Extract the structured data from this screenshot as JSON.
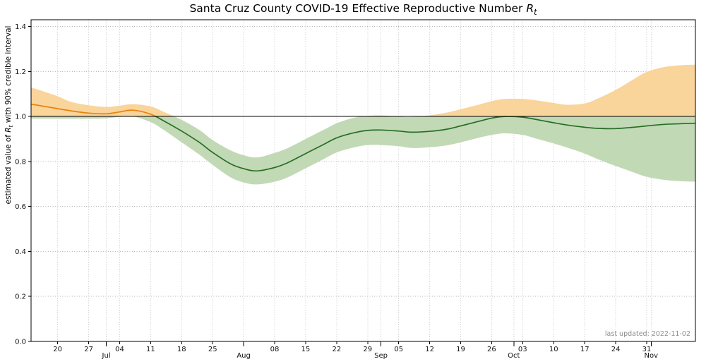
{
  "page": {
    "title_prefix": "Santa Cruz County COVID-19 Effective Reproductive Number ",
    "rt_symbol": "R",
    "rt_sub": "t",
    "ylabel_prefix": "estimated value of ",
    "ylabel_suffix": " with 90% credible interval",
    "note": "last updated: 2022-11-02"
  },
  "chart_data": {
    "type": "line",
    "title": "Santa Cruz County COVID-19 Effective Reproductive Number Rt",
    "ylabel": "estimated value of Rt with 90% credible interval",
    "note": "last updated: 2022-11-02",
    "x_unit": "days since 2022-06-14",
    "xlim_days": [
      0,
      150
    ],
    "ylim": [
      0,
      1.43
    ],
    "reference_line": 1.0,
    "grid": true,
    "legend": "none",
    "yticks": [
      {
        "v": 0.0,
        "l": "0.0"
      },
      {
        "v": 0.2,
        "l": "0.2"
      },
      {
        "v": 0.4,
        "l": "0.4"
      },
      {
        "v": 0.6,
        "l": "0.6"
      },
      {
        "v": 0.8,
        "l": "0.8"
      },
      {
        "v": 1.0,
        "l": "1.0"
      },
      {
        "v": 1.2,
        "l": "1.2"
      },
      {
        "v": 1.4,
        "l": "1.4"
      }
    ],
    "xticks_week": [
      {
        "d": 6,
        "l": "20"
      },
      {
        "d": 13,
        "l": "27"
      },
      {
        "d": 20,
        "l": "04"
      },
      {
        "d": 27,
        "l": "11"
      },
      {
        "d": 34,
        "l": "18"
      },
      {
        "d": 41,
        "l": "25"
      },
      {
        "d": 55,
        "l": "08"
      },
      {
        "d": 62,
        "l": "15"
      },
      {
        "d": 69,
        "l": "22"
      },
      {
        "d": 76,
        "l": "29"
      },
      {
        "d": 83,
        "l": "05"
      },
      {
        "d": 90,
        "l": "12"
      },
      {
        "d": 97,
        "l": "19"
      },
      {
        "d": 104,
        "l": "26"
      },
      {
        "d": 111,
        "l": "03"
      },
      {
        "d": 118,
        "l": "10"
      },
      {
        "d": 125,
        "l": "17"
      },
      {
        "d": 132,
        "l": "24"
      },
      {
        "d": 139,
        "l": "31"
      }
    ],
    "xticks_month": [
      {
        "d": 17,
        "l": "Jul"
      },
      {
        "d": 48,
        "l": "Aug"
      },
      {
        "d": 79,
        "l": "Sep"
      },
      {
        "d": 109,
        "l": "Oct"
      },
      {
        "d": 140,
        "l": "Nov"
      }
    ],
    "days": [
      0,
      3,
      6,
      9,
      13,
      17,
      20,
      23,
      27,
      30,
      34,
      38,
      41,
      45,
      48,
      51,
      55,
      58,
      62,
      66,
      69,
      73,
      76,
      79,
      83,
      86,
      90,
      94,
      97,
      101,
      104,
      107,
      111,
      114,
      118,
      121,
      125,
      128,
      132,
      136,
      139,
      143,
      147,
      150
    ],
    "series": [
      {
        "name": "Rt mean",
        "values": [
          1.055,
          1.045,
          1.035,
          1.025,
          1.015,
          1.012,
          1.02,
          1.028,
          1.01,
          0.98,
          0.935,
          0.885,
          0.84,
          0.79,
          0.768,
          0.758,
          0.773,
          0.795,
          0.835,
          0.875,
          0.905,
          0.928,
          0.938,
          0.94,
          0.935,
          0.93,
          0.934,
          0.944,
          0.958,
          0.978,
          0.993,
          1.0,
          0.997,
          0.987,
          0.972,
          0.962,
          0.952,
          0.947,
          0.946,
          0.952,
          0.958,
          0.965,
          0.968,
          0.97
        ]
      },
      {
        "name": "90% credible lower",
        "values": [
          0.99,
          0.99,
          0.99,
          0.99,
          0.99,
          0.992,
          0.998,
          1.0,
          0.975,
          0.94,
          0.885,
          0.83,
          0.785,
          0.73,
          0.707,
          0.698,
          0.71,
          0.73,
          0.77,
          0.81,
          0.84,
          0.863,
          0.873,
          0.873,
          0.868,
          0.86,
          0.863,
          0.872,
          0.885,
          0.905,
          0.918,
          0.925,
          0.918,
          0.902,
          0.88,
          0.862,
          0.835,
          0.81,
          0.78,
          0.752,
          0.732,
          0.718,
          0.712,
          0.71
        ]
      },
      {
        "name": "90% credible upper",
        "values": [
          1.13,
          1.11,
          1.09,
          1.065,
          1.05,
          1.042,
          1.048,
          1.055,
          1.045,
          1.02,
          0.985,
          0.94,
          0.895,
          0.85,
          0.828,
          0.818,
          0.838,
          0.86,
          0.9,
          0.94,
          0.97,
          0.995,
          1.003,
          1.005,
          1.0,
          0.998,
          1.005,
          1.018,
          1.032,
          1.052,
          1.068,
          1.078,
          1.078,
          1.072,
          1.06,
          1.052,
          1.058,
          1.08,
          1.118,
          1.165,
          1.198,
          1.22,
          1.228,
          1.23
        ]
      }
    ],
    "colors": {
      "above_line": "#e8820e",
      "below_line": "#266e26",
      "above_fill": "#f9d49b",
      "below_fill": "#c2d9b5",
      "reference": "#000000",
      "grid": "#bbbbbb",
      "note": "#8c8c8c"
    }
  }
}
